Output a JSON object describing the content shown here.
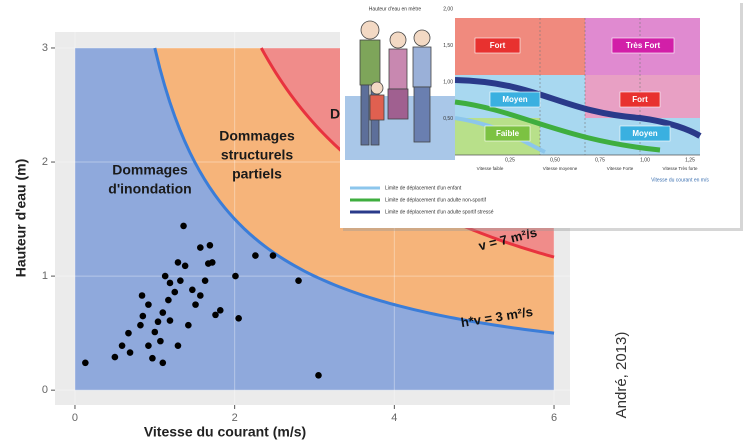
{
  "chart_data": {
    "type": "scatter",
    "x_label": "Vitesse du courant (m/s)",
    "y_label": "Hauteur d'eau (m)",
    "xlim": [
      -0.25,
      6.2
    ],
    "ylim": [
      -0.13,
      3.14
    ],
    "xticks": [
      0,
      2,
      4,
      6
    ],
    "yticks": [
      0,
      1,
      2,
      3
    ],
    "grid": true,
    "extent": {
      "x": [
        0,
        6
      ],
      "y": [
        0,
        3
      ]
    },
    "regions": [
      {
        "lines": [
          "Dommages",
          "d'inondation"
        ],
        "color": "#8fa9dc"
      },
      {
        "lines": [
          "Dommages",
          "structurels",
          "partiels"
        ],
        "color": "#f6b47a"
      },
      {
        "lines": [
          "D"
        ],
        "color": "#f08c8a"
      }
    ],
    "curves": [
      {
        "k": 3,
        "label": "h*v = 3 m²/s",
        "color": "#3b7dd8"
      },
      {
        "k": 7,
        "label": "v = 7 m²/s",
        "color": "#e8333f"
      }
    ],
    "point_color": "#000000",
    "x": [
      0.13,
      0.5,
      0.59,
      0.69,
      0.67,
      0.82,
      0.85,
      0.92,
      0.97,
      1.07,
      1.04,
      1.1,
      1.17,
      1.13,
      1.19,
      1.25,
      1.32,
      1.29,
      1.36,
      1.1,
      1.29,
      1.42,
      1.51,
      1.47,
      1.57,
      1.63,
      1.67,
      1.57,
      1.69,
      1.72,
      1.76,
      1.82,
      2.01,
      2.05,
      2.26,
      2.48,
      2.8,
      3.05,
      0.84,
      0.92,
      1.38,
      1.0,
      1.19
    ],
    "y": [
      0.24,
      0.29,
      0.39,
      0.33,
      0.5,
      0.57,
      0.65,
      0.39,
      0.28,
      0.43,
      0.6,
      0.68,
      0.79,
      1.0,
      0.94,
      0.86,
      0.96,
      1.12,
      1.44,
      0.24,
      0.39,
      0.57,
      0.75,
      0.88,
      0.83,
      0.96,
      1.11,
      1.25,
      1.27,
      1.12,
      0.66,
      0.7,
      1.0,
      0.63,
      1.18,
      1.18,
      0.96,
      0.13,
      0.83,
      0.75,
      1.09,
      0.51,
      0.61
    ]
  },
  "inset": {
    "y_title": "Hauteur d'eau en mètre",
    "yticks": [
      {
        "value": 2,
        "label": "2,00"
      },
      {
        "value": 1.5,
        "label": "1,50"
      },
      {
        "value": 1,
        "label": "1,00"
      },
      {
        "value": 0.5,
        "label": "0,50"
      }
    ],
    "xticks": [
      {
        "value": 0.25,
        "label": "0,25"
      },
      {
        "value": 0.5,
        "label": "0,50"
      },
      {
        "value": 0.75,
        "label": "0,75"
      },
      {
        "value": 1,
        "label": "1,00"
      },
      {
        "value": 1.25,
        "label": "1,25"
      }
    ],
    "x_categories": [
      "Vitesse faible",
      "Vitesse moyenne",
      "Vitesse Forte",
      "Vitesse Très forte"
    ],
    "x_title": "Vitesse du courant en m/s",
    "cells": [
      {
        "label": "Fort",
        "color": "#e8312f"
      },
      {
        "label": "Très Fort",
        "color": "#d21fa8"
      },
      {
        "label": "Moyen",
        "color": "#3ab0e0"
      },
      {
        "label": "Fort",
        "color": "#e8312f"
      },
      {
        "label": "Faible",
        "color": "#7cc242"
      },
      {
        "label": "Moyen",
        "color": "#3ab0e0"
      }
    ],
    "legend": [
      {
        "label": "Limite de déplacement d'un enfant",
        "color": "#8cc6ec"
      },
      {
        "label": "Limite de déplacement d'un adulte non-sportif",
        "color": "#3fae3f"
      },
      {
        "label": "Limite de déplacement d'un adulte sportif stressé",
        "color": "#2a3a8a"
      }
    ]
  },
  "source": "André, 2013)"
}
